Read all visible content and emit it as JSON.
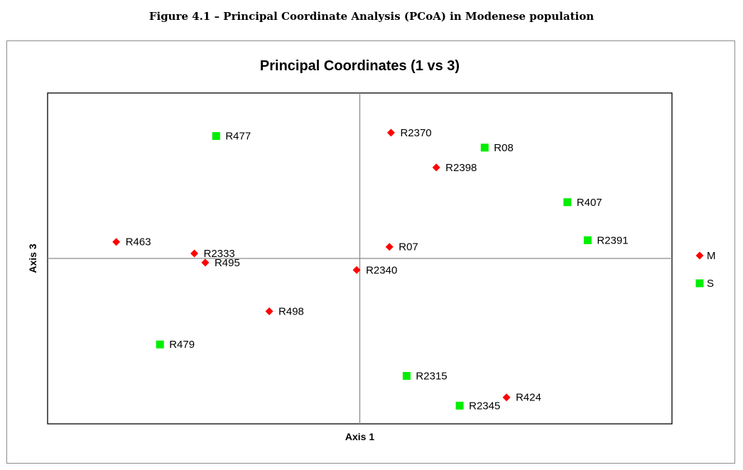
{
  "caption": "Figure 4.1 – Principal Coordinate Analysis (PCoA)  in Modenese population",
  "chart_data": {
    "type": "scatter",
    "title": "Principal Coordinates (1 vs 3)",
    "xlabel": "Axis 1",
    "ylabel": "Axis 3",
    "xlim": [
      -1,
      1
    ],
    "ylim": [
      -1,
      1
    ],
    "grid": false,
    "zero_lines": true,
    "legend_position": "right",
    "series": [
      {
        "name": "M",
        "marker": "diamond",
        "color": "#ff0000",
        "points": [
          {
            "label": "R2370",
            "x": 0.1,
            "y": 0.76
          },
          {
            "label": "R2398",
            "x": 0.245,
            "y": 0.55
          },
          {
            "label": "R463",
            "x": -0.78,
            "y": 0.1
          },
          {
            "label": "R2333",
            "x": -0.53,
            "y": 0.03
          },
          {
            "label": "R495",
            "x": -0.495,
            "y": -0.025
          },
          {
            "label": "R07",
            "x": 0.095,
            "y": 0.07
          },
          {
            "label": "R2340",
            "x": -0.01,
            "y": -0.07
          },
          {
            "label": "R498",
            "x": -0.29,
            "y": -0.32
          },
          {
            "label": "R424",
            "x": 0.47,
            "y": -0.84
          }
        ]
      },
      {
        "name": "S",
        "marker": "square",
        "color": "#00ee00",
        "points": [
          {
            "label": "R477",
            "x": -0.46,
            "y": 0.74
          },
          {
            "label": "R08",
            "x": 0.4,
            "y": 0.67
          },
          {
            "label": "R407",
            "x": 0.665,
            "y": 0.34
          },
          {
            "label": "R2391",
            "x": 0.73,
            "y": 0.11
          },
          {
            "label": "R479",
            "x": -0.64,
            "y": -0.52
          },
          {
            "label": "R2315",
            "x": 0.15,
            "y": -0.71
          },
          {
            "label": "R2345",
            "x": 0.32,
            "y": -0.89
          }
        ]
      }
    ]
  }
}
